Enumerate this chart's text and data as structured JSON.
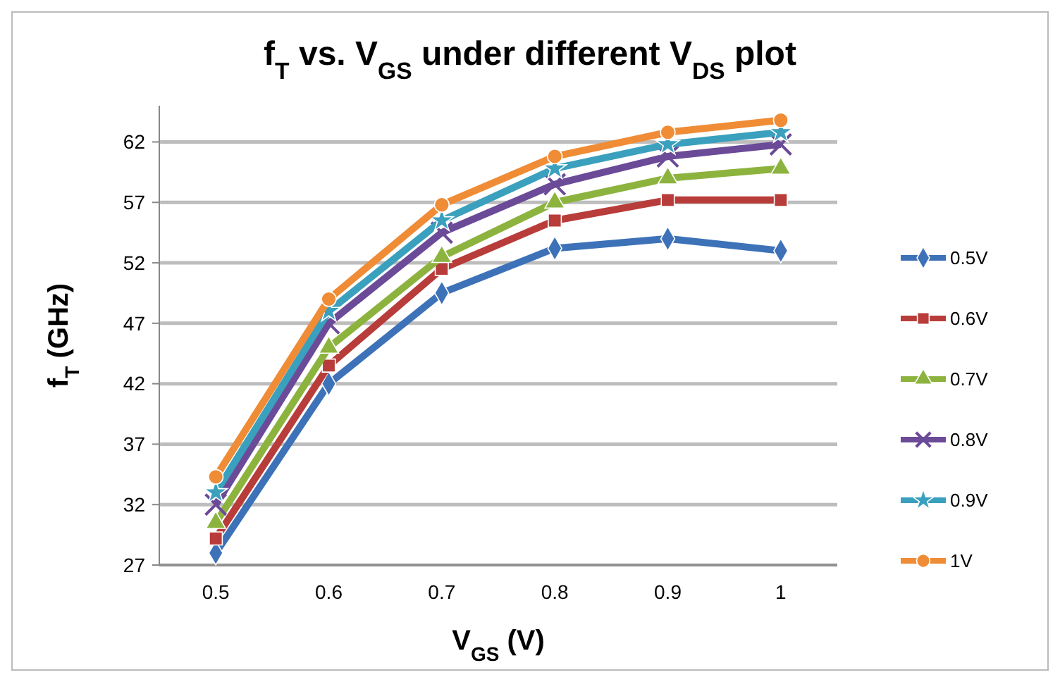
{
  "chart_data": {
    "type": "line",
    "title": "f$_{T}$  vs. V$_{GS}$  under different V$_{DS}$ plot",
    "xlabel": "V$_{GS}$ (V)",
    "ylabel": "f$_{T}$ (GHz)",
    "categories": [
      "0.5",
      "0.6",
      "0.7",
      "0.8",
      "0.9",
      "1"
    ],
    "ylim": [
      27,
      65
    ],
    "yticks": [
      27,
      32,
      37,
      42,
      47,
      52,
      57,
      62
    ],
    "grid": "y",
    "legend": "right",
    "series": [
      {
        "name": "0.5V",
        "color": "#3d72b8",
        "marker": "diamond",
        "values": [
          28,
          42,
          49.5,
          53.2,
          54,
          53
        ]
      },
      {
        "name": "0.6V",
        "color": "#b83c3a",
        "marker": "square",
        "values": [
          29.2,
          43.5,
          51.5,
          55.5,
          57.2,
          57.2
        ]
      },
      {
        "name": "0.7V",
        "color": "#8db33f",
        "marker": "triangle",
        "values": [
          30.5,
          45,
          52.5,
          57,
          59,
          59.8
        ]
      },
      {
        "name": "0.8V",
        "color": "#6b4a98",
        "marker": "cross",
        "values": [
          32,
          47,
          54.5,
          58.5,
          60.8,
          61.8
        ]
      },
      {
        "name": "0.9V",
        "color": "#3aa0bd",
        "marker": "star",
        "values": [
          33,
          48,
          55.5,
          59.8,
          61.8,
          62.8
        ]
      },
      {
        "name": "1V",
        "color": "#ef8c35",
        "marker": "circle",
        "values": [
          34.3,
          49,
          56.8,
          60.8,
          62.8,
          63.8
        ]
      }
    ]
  }
}
